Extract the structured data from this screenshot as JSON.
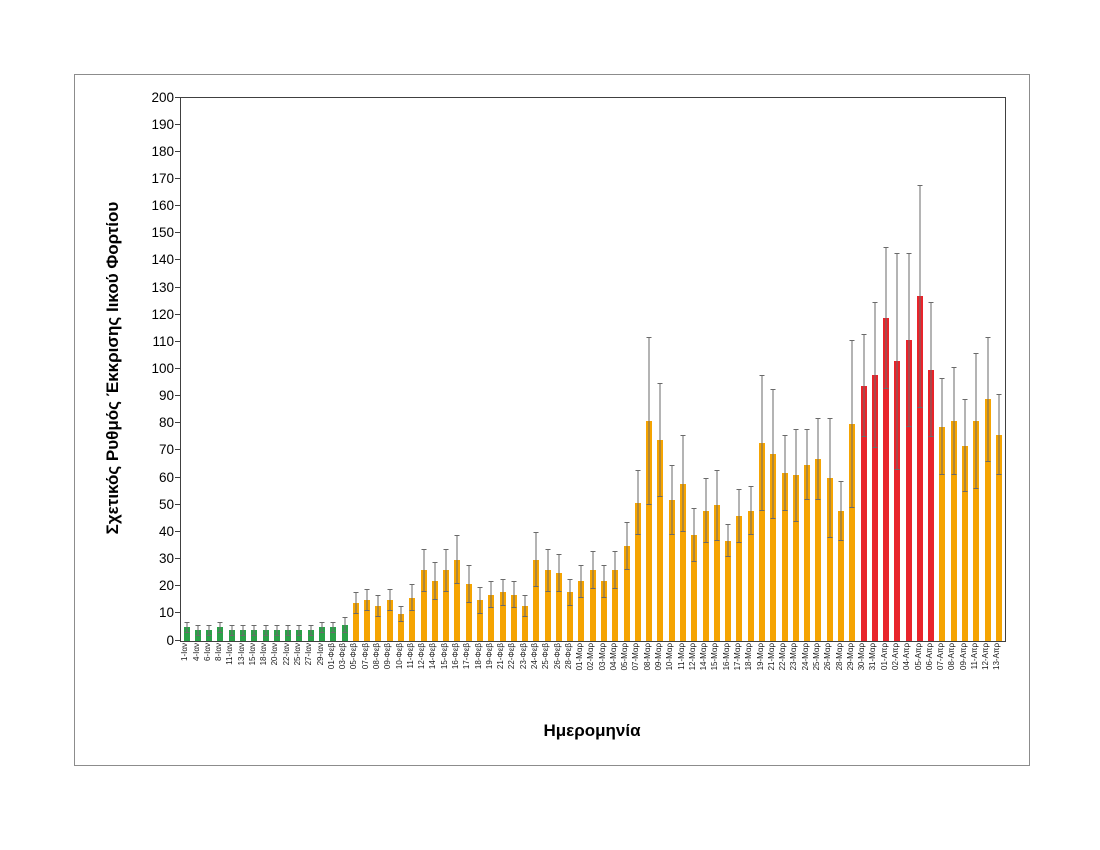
{
  "chart_data": {
    "type": "bar",
    "title": "",
    "xlabel": "Ημερομηνία",
    "ylabel": "Σχετικός Ρυθμός Έκκρισης Ιικού Φορτίου",
    "ylim": [
      0,
      200
    ],
    "ytick_step": 10,
    "yticks": [
      0,
      10,
      20,
      30,
      40,
      50,
      60,
      70,
      80,
      90,
      100,
      110,
      120,
      130,
      140,
      150,
      160,
      170,
      180,
      190,
      200
    ],
    "grid": false,
    "legend": null,
    "error_bars": true,
    "colors": {
      "green": "#2aa148",
      "orange": "#f5a402",
      "red": "#e8242b",
      "error": "#6a6a6a",
      "axis": "#404040"
    },
    "categories": [
      "1-Ιαν",
      "4-Ιαν",
      "6-Ιαν",
      "8-Ιαν",
      "11-Ιαν",
      "13-Ιαν",
      "15-Ιαν",
      "18-Ιαν",
      "20-Ιαν",
      "22-Ιαν",
      "25-Ιαν",
      "27-Ιαν",
      "29-Ιαν",
      "01-Φεβ",
      "03-Φεβ",
      "05-Φεβ",
      "07-Φεβ",
      "08-Φεβ",
      "09-Φεβ",
      "10-Φεβ",
      "11-Φεβ",
      "12-Φεβ",
      "14-Φεβ",
      "15-Φεβ",
      "16-Φεβ",
      "17-Φεβ",
      "18-Φεβ",
      "19-Φεβ",
      "21-Φεβ",
      "22-Φεβ",
      "23-Φεβ",
      "24-Φεβ",
      "25-Φεβ",
      "26-Φεβ",
      "28-Φεβ",
      "01-Μαρ",
      "02-Μαρ",
      "03-Μαρ",
      "04-Μαρ",
      "05-Μαρ",
      "07-Μαρ",
      "08-Μαρ",
      "09-Μαρ",
      "10-Μαρ",
      "11-Μαρ",
      "12-Μαρ",
      "14-Μαρ",
      "15-Μαρ",
      "16-Μαρ",
      "17-Μαρ",
      "18-Μαρ",
      "19-Μαρ",
      "21-Μαρ",
      "22-Μαρ",
      "23-Μαρ",
      "24-Μαρ",
      "25-Μαρ",
      "26-Μαρ",
      "28-Μαρ",
      "29-Μαρ",
      "30-Μαρ",
      "31-Μαρ",
      "01-Απρ",
      "02-Απρ",
      "04-Απρ",
      "05-Απρ",
      "06-Απρ",
      "07-Απρ",
      "08-Απρ",
      "09-Απρ",
      "11-Απρ",
      "12-Απρ",
      "13-Απρ"
    ],
    "values": [
      5,
      4,
      4,
      5,
      4,
      4,
      4,
      4,
      4,
      4,
      4,
      4,
      5,
      5,
      6,
      14,
      15,
      13,
      15,
      10,
      16,
      26,
      22,
      26,
      30,
      21,
      15,
      17,
      18,
      17,
      13,
      30,
      26,
      25,
      18,
      22,
      26,
      22,
      26,
      35,
      51,
      81,
      74,
      52,
      58,
      39,
      48,
      50,
      37,
      46,
      48,
      73,
      69,
      62,
      61,
      65,
      67,
      60,
      48,
      80,
      94,
      98,
      119,
      103,
      111,
      127,
      100,
      79,
      81,
      72,
      81,
      89,
      76
    ],
    "errors": [
      2,
      2,
      2,
      2,
      2,
      2,
      2,
      2,
      2,
      2,
      2,
      2,
      2,
      2,
      3,
      4,
      4,
      4,
      4,
      3,
      5,
      8,
      7,
      8,
      9,
      7,
      5,
      5,
      5,
      5,
      4,
      10,
      8,
      7,
      5,
      6,
      7,
      6,
      7,
      9,
      12,
      31,
      21,
      13,
      18,
      10,
      12,
      13,
      6,
      10,
      9,
      25,
      24,
      14,
      17,
      13,
      15,
      22,
      11,
      31,
      19,
      27,
      26,
      40,
      32,
      41,
      25,
      18,
      20,
      17,
      25,
      23,
      15
    ],
    "groups": [
      "green",
      "green",
      "green",
      "green",
      "green",
      "green",
      "green",
      "green",
      "green",
      "green",
      "green",
      "green",
      "green",
      "green",
      "green",
      "orange",
      "orange",
      "orange",
      "orange",
      "orange",
      "orange",
      "orange",
      "orange",
      "orange",
      "orange",
      "orange",
      "orange",
      "orange",
      "orange",
      "orange",
      "orange",
      "orange",
      "orange",
      "orange",
      "orange",
      "orange",
      "orange",
      "orange",
      "orange",
      "orange",
      "orange",
      "orange",
      "orange",
      "orange",
      "orange",
      "orange",
      "orange",
      "orange",
      "orange",
      "orange",
      "orange",
      "orange",
      "orange",
      "orange",
      "orange",
      "orange",
      "orange",
      "orange",
      "orange",
      "orange",
      "red",
      "red",
      "red",
      "red",
      "red",
      "red",
      "red",
      "orange",
      "orange",
      "orange",
      "orange",
      "orange",
      "orange"
    ]
  }
}
